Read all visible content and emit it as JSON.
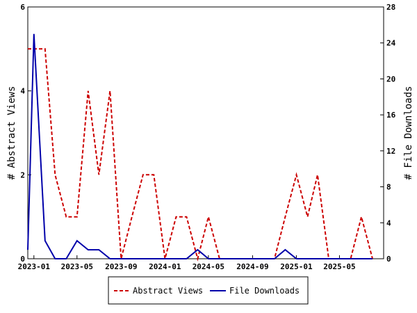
{
  "chart_data": {
    "type": "line",
    "x": [
      "2023-01",
      "2023-02",
      "2023-03",
      "2023-04",
      "2023-05",
      "2023-06",
      "2023-07",
      "2023-08",
      "2023-09",
      "2023-10",
      "2023-11",
      "2023-12",
      "2024-01",
      "2024-02",
      "2024-03",
      "2024-04",
      "2024-05",
      "2024-06",
      "2024-07",
      "2024-08",
      "2024-09",
      "2024-10",
      "2024-11",
      "2024-12",
      "2025-01",
      "2025-02",
      "2025-03",
      "2025-04",
      "2025-05",
      "2025-06",
      "2025-07",
      "2025-08",
      "2025-09"
    ],
    "x_ticks": [
      "2023-01",
      "2023-05",
      "2023-09",
      "2024-01",
      "2024-05",
      "2024-09",
      "2025-01",
      "2025-05"
    ],
    "x_tick_labels": [
      "2023-01",
      "2023-05",
      "2023-09",
      "2024-01",
      "2024-05",
      "2024-09",
      "2025-01",
      "2025-05"
    ],
    "series": [
      {
        "name": "Abstract Views",
        "axis": "left",
        "color": "#cc0000",
        "style": "dashed",
        "points": [
          [
            "2022-12-15",
            5
          ],
          [
            "2023-01",
            5
          ],
          [
            "2023-02",
            5
          ],
          [
            "2023-03",
            2
          ],
          [
            "2023-04",
            1
          ],
          [
            "2023-05",
            1
          ],
          [
            "2023-06",
            4
          ],
          [
            "2023-07",
            2
          ],
          [
            "2023-08",
            4
          ],
          [
            "2023-09",
            0
          ],
          [
            "2023-10",
            1
          ],
          [
            "2023-11",
            2
          ],
          [
            "2023-12",
            2
          ],
          [
            "2024-01",
            0
          ],
          [
            "2024-02",
            1
          ],
          [
            "2024-03",
            1
          ],
          [
            "2024-04",
            0
          ],
          [
            "2024-05",
            1
          ],
          [
            "2024-06",
            0
          ],
          [
            "2024-07",
            0
          ],
          [
            "2024-08",
            0
          ],
          [
            "2024-09",
            0
          ],
          [
            "2024-10",
            0
          ],
          [
            "2024-11",
            0
          ],
          [
            "2024-12",
            1
          ],
          [
            "2025-01",
            2
          ],
          [
            "2025-02",
            1
          ],
          [
            "2025-03",
            2
          ],
          [
            "2025-04",
            0
          ],
          [
            "2025-05",
            0
          ],
          [
            "2025-06",
            0
          ],
          [
            "2025-07",
            1
          ],
          [
            "2025-08",
            0
          ]
        ]
      },
      {
        "name": "File Downloads",
        "axis": "right",
        "color": "#0000aa",
        "style": "solid",
        "points": [
          [
            "2022-12-15",
            1
          ],
          [
            "2023-01",
            25
          ],
          [
            "2023-02",
            2
          ],
          [
            "2023-03",
            0
          ],
          [
            "2023-04",
            0
          ],
          [
            "2023-05",
            2
          ],
          [
            "2023-06",
            1
          ],
          [
            "2023-07",
            1
          ],
          [
            "2023-08",
            0
          ],
          [
            "2023-09",
            0
          ],
          [
            "2023-10",
            0
          ],
          [
            "2023-11",
            0
          ],
          [
            "2023-12",
            0
          ],
          [
            "2024-01",
            0
          ],
          [
            "2024-02",
            0
          ],
          [
            "2024-03",
            0
          ],
          [
            "2024-04",
            1
          ],
          [
            "2024-05",
            0
          ],
          [
            "2024-06",
            0
          ],
          [
            "2024-07",
            0
          ],
          [
            "2024-08",
            0
          ],
          [
            "2024-09",
            0
          ],
          [
            "2024-10",
            0
          ],
          [
            "2024-11",
            0
          ],
          [
            "2024-12",
            1
          ],
          [
            "2025-01",
            0
          ],
          [
            "2025-02",
            0
          ],
          [
            "2025-03",
            0
          ],
          [
            "2025-04",
            0
          ],
          [
            "2025-05",
            0
          ],
          [
            "2025-06",
            0
          ],
          [
            "2025-07",
            0
          ],
          [
            "2025-08",
            0
          ]
        ]
      }
    ],
    "y_left": {
      "label": "# Abstract Views",
      "lim": [
        0,
        6
      ],
      "ticks": [
        0,
        2,
        4,
        6
      ]
    },
    "y_right": {
      "label": "# File Downloads",
      "lim": [
        0,
        28
      ],
      "ticks": [
        0,
        4,
        8,
        12,
        16,
        20,
        24,
        28
      ]
    },
    "x_range": [
      "2022-12-15",
      "2025-09-01"
    ],
    "legend_placement": "bottom-center",
    "grid": false
  }
}
